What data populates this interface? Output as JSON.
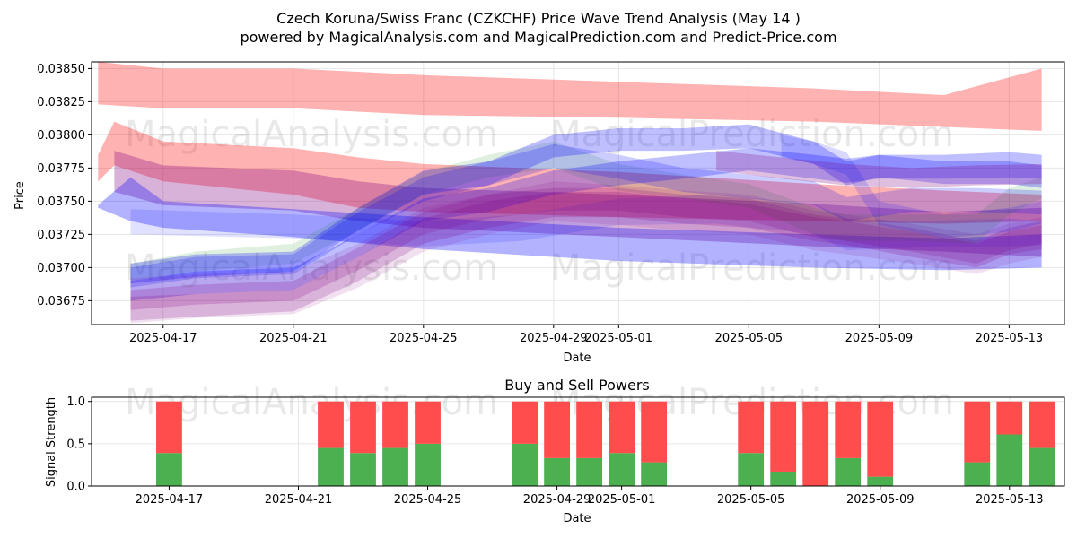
{
  "title_line1": "Czech Koruna/Swiss Franc (CZKCHF) Price Wave Trend Analysis (May 14 )",
  "title_line2": "powered by MagicalAnalysis.com and MagicalPrediction.com and Predict-Price.com",
  "watermarks": [
    "MagicalAnalysis.com",
    "MagicalPrediction.com"
  ],
  "colors": {
    "red": "#ff0000",
    "blue": "#0000ff",
    "purple": "#800080",
    "green": "#008000",
    "buy": "#4caf50",
    "sell": "#ff4d4d"
  },
  "chart_data": [
    {
      "type": "area",
      "title": "",
      "xlabel": "Date",
      "ylabel": "Price",
      "ylim": [
        0.03657,
        0.03855
      ],
      "xlim": [
        -1.2,
        28.7
      ],
      "yticks": [
        0.03675,
        0.037,
        0.03725,
        0.0375,
        0.03775,
        0.038,
        0.03825,
        0.0385
      ],
      "ytick_labels": [
        "0.03675",
        "0.03700",
        "0.03725",
        "0.03750",
        "0.03775",
        "0.03800",
        "0.03825",
        "0.03850"
      ],
      "xticks": [
        1,
        5,
        9,
        13,
        15,
        19,
        23,
        27
      ],
      "xtick_labels": [
        "2025-04-17",
        "2025-04-21",
        "2025-04-25",
        "2025-04-29",
        "2025-05-01",
        "2025-05-05",
        "2025-05-09",
        "2025-05-13"
      ],
      "x_origin": "2025-04-16 = 0",
      "bands": [
        {
          "color": "red",
          "opacity": 0.3,
          "x": [
            -1,
            1,
            5,
            9,
            15,
            21,
            25,
            28
          ],
          "upper": [
            0.03855,
            0.0385,
            0.0385,
            0.03845,
            0.0384,
            0.03835,
            0.0383,
            0.0385
          ],
          "lower": [
            0.03823,
            0.0382,
            0.0382,
            0.03815,
            0.03813,
            0.0381,
            0.03806,
            0.03803
          ]
        },
        {
          "color": "red",
          "opacity": 0.3,
          "x": [
            -1,
            -0.5,
            1,
            5,
            7,
            9,
            15,
            21,
            25,
            28
          ],
          "upper": [
            0.03785,
            0.0381,
            0.03795,
            0.0379,
            0.03783,
            0.03778,
            0.03772,
            0.03763,
            0.03758,
            0.03755
          ],
          "lower": [
            0.03765,
            0.03777,
            0.03765,
            0.03755,
            0.03745,
            0.03742,
            0.03738,
            0.03735,
            0.03733,
            0.03735
          ]
        },
        {
          "color": "purple",
          "opacity": 0.3,
          "x": [
            -0.5,
            1,
            5,
            7,
            9,
            15,
            21,
            25,
            28
          ],
          "upper": [
            0.03788,
            0.03777,
            0.03773,
            0.03765,
            0.0376,
            0.03755,
            0.03748,
            0.03742,
            0.03745
          ],
          "lower": [
            0.03757,
            0.03747,
            0.03743,
            0.03735,
            0.0373,
            0.03723,
            0.03716,
            0.03712,
            0.03708
          ]
        },
        {
          "color": "blue",
          "opacity": 0.3,
          "x": [
            -1,
            0,
            1,
            5,
            9,
            15,
            21,
            25,
            28
          ],
          "upper": [
            0.03747,
            0.03768,
            0.0375,
            0.03744,
            0.03738,
            0.0373,
            0.03725,
            0.03722,
            0.03725
          ],
          "lower": [
            0.03745,
            0.03735,
            0.0373,
            0.03723,
            0.03714,
            0.03705,
            0.037,
            0.03698,
            0.037
          ]
        },
        {
          "color": "blue",
          "opacity": 0.12,
          "x": [
            0,
            5,
            9,
            12,
            15,
            18,
            21,
            22,
            24,
            27,
            28
          ],
          "upper": [
            0.03744,
            0.0374,
            0.03735,
            0.0374,
            0.03752,
            0.03755,
            0.03748,
            0.03737,
            0.03735,
            0.03737,
            0.03735
          ],
          "lower": [
            0.03725,
            0.03722,
            0.03716,
            0.0372,
            0.03732,
            0.03733,
            0.03725,
            0.03713,
            0.03715,
            0.03716,
            0.03717
          ]
        },
        {
          "color": "green",
          "opacity": 0.12,
          "x": [
            0,
            2,
            5,
            7,
            9,
            11,
            13,
            15,
            17,
            19,
            21,
            22,
            24,
            26,
            27,
            28
          ],
          "upper": [
            0.03703,
            0.03712,
            0.03718,
            0.03745,
            0.03772,
            0.03785,
            0.03795,
            0.03778,
            0.0377,
            0.03763,
            0.03745,
            0.0374,
            0.0374,
            0.0374,
            0.0376,
            0.03768
          ],
          "lower": [
            0.0369,
            0.03697,
            0.03703,
            0.03728,
            0.03755,
            0.03768,
            0.03775,
            0.03758,
            0.03752,
            0.03745,
            0.03725,
            0.0372,
            0.0372,
            0.03718,
            0.0374,
            0.03752
          ]
        },
        {
          "color": "blue",
          "opacity": 0.2,
          "x": [
            0,
            2,
            5,
            7,
            9,
            11,
            13,
            15,
            17,
            19,
            21,
            22,
            24,
            26,
            28
          ],
          "upper": [
            0.037,
            0.03708,
            0.0371,
            0.03742,
            0.03768,
            0.0378,
            0.03793,
            0.03785,
            0.03775,
            0.0377,
            0.03765,
            0.03753,
            0.0376,
            0.0376,
            0.03758
          ],
          "lower": [
            0.03685,
            0.03692,
            0.03695,
            0.03725,
            0.0375,
            0.03762,
            0.03775,
            0.03767,
            0.03757,
            0.03752,
            0.03747,
            0.03735,
            0.03742,
            0.03742,
            0.0374
          ]
        },
        {
          "color": "blue",
          "opacity": 0.25,
          "x": [
            0,
            2,
            5,
            7,
            9,
            11,
            13,
            15,
            17,
            19,
            21,
            22,
            23,
            25,
            27,
            28
          ],
          "upper": [
            0.03703,
            0.0371,
            0.03712,
            0.03745,
            0.03773,
            0.0378,
            0.038,
            0.03805,
            0.03805,
            0.03808,
            0.03795,
            0.0378,
            0.03785,
            0.0378,
            0.0378,
            0.03777
          ],
          "lower": [
            0.03688,
            0.03693,
            0.03697,
            0.03728,
            0.03755,
            0.03762,
            0.03783,
            0.03788,
            0.03788,
            0.0379,
            0.03778,
            0.03762,
            0.03768,
            0.03763,
            0.03763,
            0.0376
          ]
        },
        {
          "color": "blue",
          "opacity": 0.25,
          "x": [
            0,
            2,
            5,
            7,
            9,
            11,
            13,
            15,
            17,
            19,
            21,
            22,
            23,
            25,
            27,
            28
          ],
          "upper": [
            0.0369,
            0.03697,
            0.037,
            0.03725,
            0.03752,
            0.0376,
            0.03773,
            0.0378,
            0.03785,
            0.0379,
            0.03785,
            0.03782,
            0.03785,
            0.03785,
            0.03787,
            0.03785
          ],
          "lower": [
            0.03675,
            0.0368,
            0.03683,
            0.03708,
            0.03735,
            0.03742,
            0.03755,
            0.03762,
            0.03767,
            0.03773,
            0.03767,
            0.03764,
            0.03767,
            0.03767,
            0.03768,
            0.03767
          ]
        },
        {
          "color": "purple",
          "opacity": 0.2,
          "x": [
            0,
            2,
            5,
            7,
            9,
            11,
            13,
            15,
            17,
            19,
            21,
            22,
            24,
            26,
            27,
            28
          ],
          "upper": [
            0.03683,
            0.03687,
            0.0369,
            0.03715,
            0.03742,
            0.03755,
            0.0376,
            0.0376,
            0.03755,
            0.03752,
            0.0374,
            0.03737,
            0.0373,
            0.0372,
            0.0373,
            0.03735
          ],
          "lower": [
            0.03668,
            0.03672,
            0.03675,
            0.03698,
            0.03725,
            0.03737,
            0.03743,
            0.03743,
            0.03738,
            0.03735,
            0.03723,
            0.0372,
            0.03712,
            0.03703,
            0.03713,
            0.03718
          ]
        },
        {
          "color": "purple",
          "opacity": 0.2,
          "x": [
            0,
            2,
            5,
            7,
            9,
            11,
            13,
            15,
            17,
            19,
            21,
            22,
            24,
            26,
            27,
            28
          ],
          "upper": [
            0.03678,
            0.0368,
            0.03683,
            0.03708,
            0.03737,
            0.0375,
            0.03757,
            0.03757,
            0.03752,
            0.03748,
            0.03738,
            0.03735,
            0.03727,
            0.03718,
            0.03727,
            0.03732
          ],
          "lower": [
            0.0366,
            0.03663,
            0.03667,
            0.0369,
            0.03718,
            0.0373,
            0.03738,
            0.03738,
            0.03733,
            0.0373,
            0.0372,
            0.03717,
            0.03708,
            0.037,
            0.0371,
            0.03714
          ]
        },
        {
          "color": "purple",
          "opacity": 0.12,
          "x": [
            0,
            2,
            5,
            7,
            9,
            11,
            13,
            15,
            17,
            19,
            21,
            22,
            24,
            26,
            27,
            28
          ],
          "upper": [
            0.03692,
            0.03695,
            0.03697,
            0.03718,
            0.03745,
            0.03755,
            0.03765,
            0.03762,
            0.03758,
            0.03755,
            0.03743,
            0.0374,
            0.03733,
            0.03725,
            0.03733,
            0.03738
          ],
          "lower": [
            0.03658,
            0.03662,
            0.03665,
            0.03685,
            0.03712,
            0.03725,
            0.03735,
            0.03732,
            0.03728,
            0.03725,
            0.03713,
            0.0371,
            0.03703,
            0.03695,
            0.03703,
            0.03708
          ]
        },
        {
          "color": "purple",
          "opacity": 0.25,
          "x": [
            18,
            20,
            22,
            24,
            26,
            28
          ],
          "upper": [
            0.03788,
            0.03783,
            0.03778,
            0.03775,
            0.03777,
            0.03778
          ],
          "lower": [
            0.03773,
            0.03767,
            0.03762,
            0.0376,
            0.03762,
            0.03763
          ]
        },
        {
          "color": "blue",
          "opacity": 0.15,
          "x": [
            20,
            21,
            22,
            23,
            25,
            27,
            28
          ],
          "upper": [
            0.038,
            0.03795,
            0.03787,
            0.0375,
            0.0374,
            0.03745,
            0.0375
          ],
          "lower": [
            0.03783,
            0.03778,
            0.0377,
            0.03732,
            0.03722,
            0.03727,
            0.03733
          ]
        }
      ]
    },
    {
      "type": "bar",
      "title": "Buy and Sell Powers",
      "xlabel": "Date",
      "ylabel": "Signal Strength",
      "ylim": [
        0,
        1.05
      ],
      "xlim": [
        -1.4,
        28.7
      ],
      "yticks": [
        0,
        0.5,
        1
      ],
      "ytick_labels": [
        "0.0",
        "0.5",
        "1.0"
      ],
      "xticks": [
        1,
        5,
        9,
        13,
        15,
        19,
        23,
        27
      ],
      "xtick_labels": [
        "2025-04-17",
        "2025-04-21",
        "2025-04-25",
        "2025-04-29",
        "2025-05-01",
        "2025-05-05",
        "2025-05-09",
        "2025-05-13"
      ],
      "series": [
        {
          "name": "Buy",
          "x": [
            1,
            6,
            7,
            8,
            9,
            12,
            13,
            14,
            15,
            16,
            19,
            20,
            21,
            22,
            23,
            26,
            27,
            28
          ],
          "values": [
            0.39,
            0.45,
            0.39,
            0.45,
            0.5,
            0.5,
            0.33,
            0.33,
            0.39,
            0.28,
            0.39,
            0.17,
            0.0,
            0.33,
            0.11,
            0.28,
            0.61,
            0.45
          ]
        },
        {
          "name": "Sell",
          "x": [
            1,
            6,
            7,
            8,
            9,
            12,
            13,
            14,
            15,
            16,
            19,
            20,
            21,
            22,
            23,
            26,
            27,
            28
          ],
          "values": [
            0.61,
            0.55,
            0.61,
            0.55,
            0.5,
            0.5,
            0.67,
            0.67,
            0.61,
            0.72,
            0.61,
            0.83,
            1.0,
            0.67,
            0.89,
            0.72,
            0.39,
            0.55
          ]
        }
      ]
    }
  ]
}
